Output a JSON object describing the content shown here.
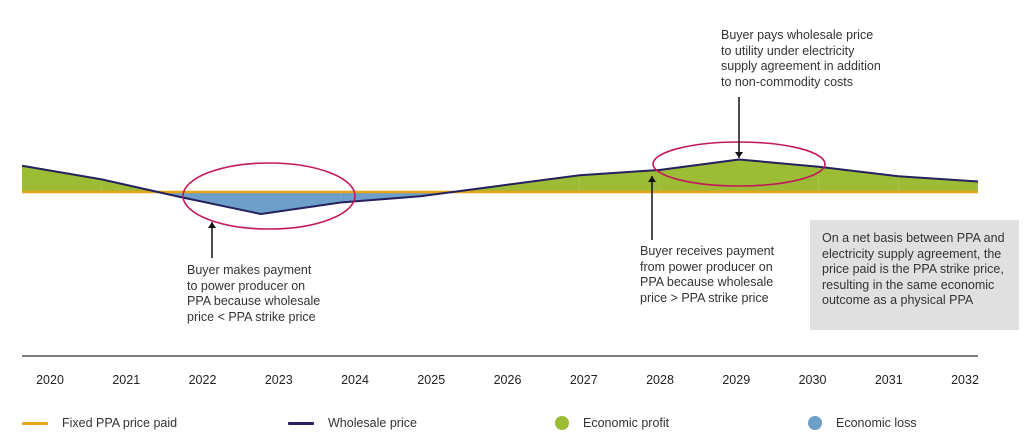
{
  "notes": {
    "top": "Buyer pays wholesale price\nto utility under electricity\nsupply agreement in addition\nto non-commodity costs",
    "left": "Buyer makes payment\nto power producer on\nPPA because wholesale\nprice < PPA strike price",
    "right": "Buyer receives payment\nfrom power producer on\nPPA because wholesale\nprice > PPA strike price",
    "box": "On a net basis between PPA and\nelectricity supply agreement, the\nprice paid is the PPA strike price,\nresulting in the same economic\noutcome as a physical PPA"
  },
  "years": [
    "2020",
    "2021",
    "2022",
    "2023",
    "2024",
    "2025",
    "2026",
    "2027",
    "2028",
    "2029",
    "2030",
    "2031",
    "2032"
  ],
  "legend": {
    "fixed": "Fixed PPA price paid",
    "wholesale": "Wholesale price",
    "profit": "Economic profit",
    "loss": "Economic loss"
  },
  "colors": {
    "fixed": "#e8a319",
    "wholesale": "#24215c",
    "profit": "#9cbc35",
    "loss": "#6d9fca",
    "highlight": "#c2185b",
    "box": "#e0e0e0"
  },
  "chart_data": {
    "type": "area",
    "x": [
      "2020",
      "2021",
      "2022",
      "2023",
      "2024",
      "2025",
      "2026",
      "2027",
      "2028",
      "2029",
      "2030",
      "2031",
      "2032"
    ],
    "series": [
      {
        "name": "Wholesale price",
        "values": [
          2.5,
          1.2,
          -0.5,
          -2.1,
          -1.0,
          -0.4,
          0.6,
          1.6,
          2.1,
          3.1,
          2.4,
          1.5,
          1.0
        ]
      },
      {
        "name": "Fixed PPA price paid",
        "values": [
          0,
          0,
          0,
          0,
          0,
          0,
          0,
          0,
          0,
          0,
          0,
          0,
          0
        ]
      }
    ]
  }
}
